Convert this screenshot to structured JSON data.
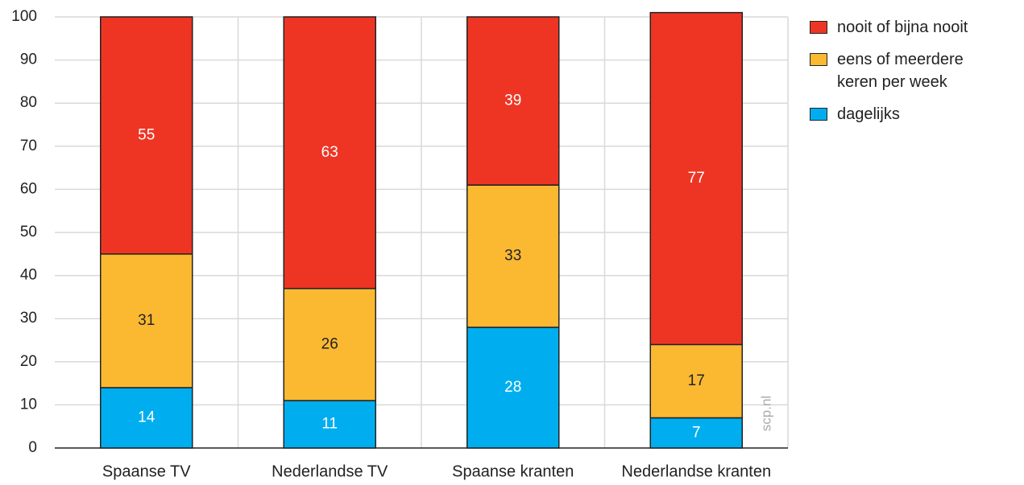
{
  "chart_data": {
    "type": "stacked_bar",
    "categories": [
      "Spaanse TV",
      "Nederlandse TV",
      "Spaanse kranten",
      "Nederlandse kranten"
    ],
    "series": [
      {
        "name": "dagelijks",
        "color": "#00aeef",
        "label_color": "#ffffff",
        "values": [
          14,
          11,
          28,
          7
        ]
      },
      {
        "name": "eens of meerdere keren per week",
        "color": "#fbb932",
        "label_color": "#222222",
        "values": [
          31,
          26,
          33,
          17
        ]
      },
      {
        "name": "nooit of bijna nooit",
        "color": "#ee3524",
        "label_color": "#ffffff",
        "values": [
          55,
          63,
          39,
          77
        ]
      }
    ],
    "ylim": [
      0,
      100
    ],
    "yticks": [
      0,
      10,
      20,
      30,
      40,
      50,
      60,
      70,
      80,
      90,
      100
    ],
    "grid": true,
    "legend": "right",
    "watermark": "scp.nl"
  }
}
